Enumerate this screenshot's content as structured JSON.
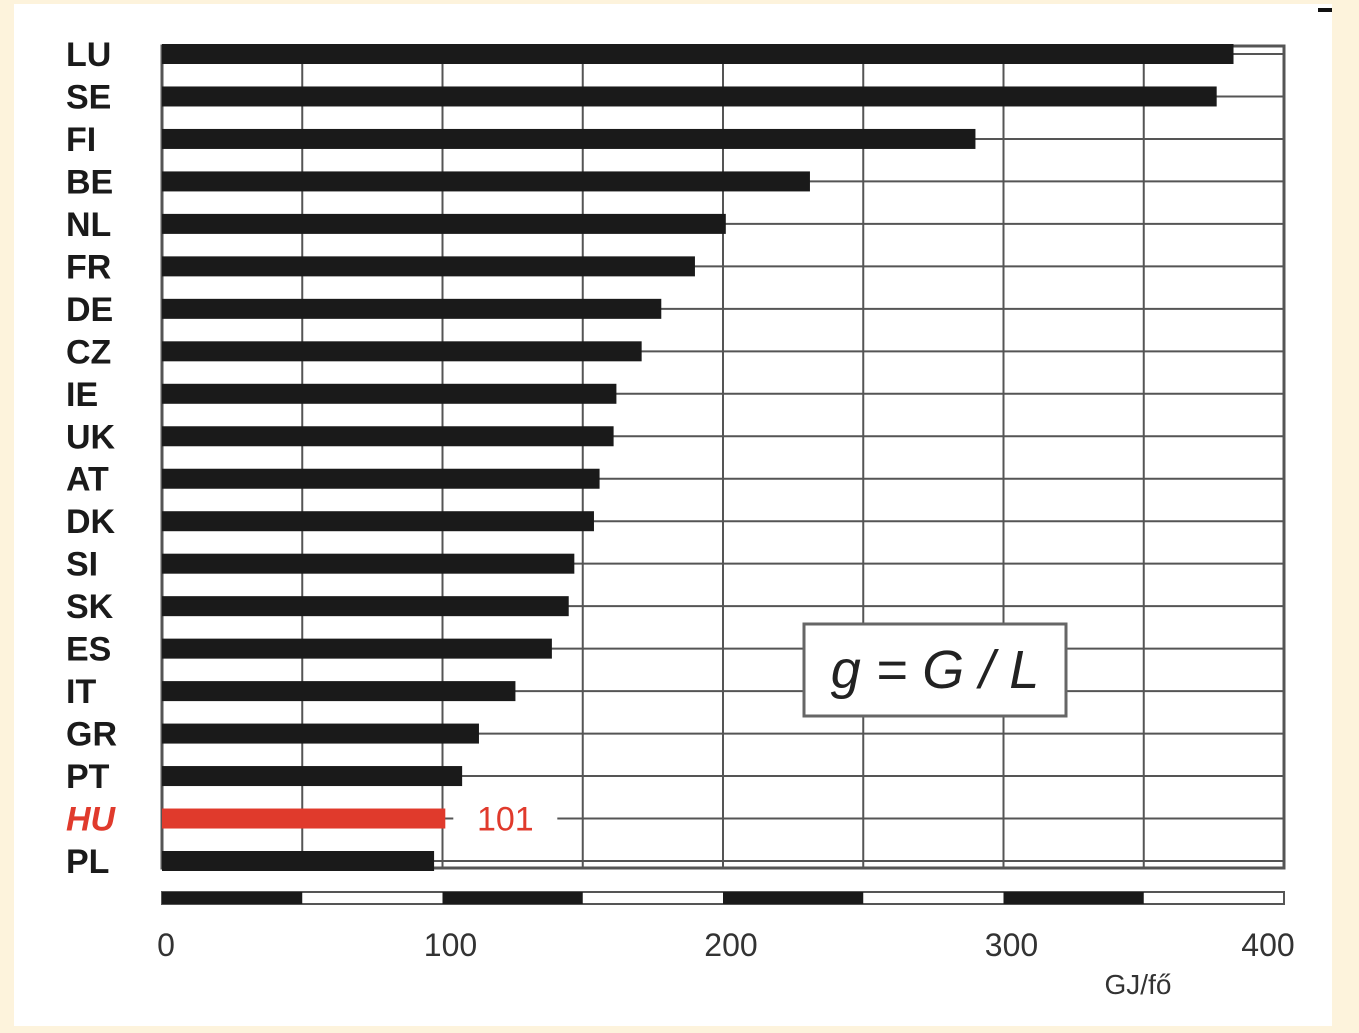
{
  "chart_data": {
    "type": "bar",
    "orientation": "horizontal",
    "categories": [
      "LU",
      "SE",
      "FI",
      "BE",
      "NL",
      "FR",
      "DE",
      "CZ",
      "IE",
      "UK",
      "AT",
      "DK",
      "SI",
      "SK",
      "ES",
      "IT",
      "GR",
      "PT",
      "HU",
      "PL"
    ],
    "values": [
      382,
      376,
      290,
      231,
      201,
      190,
      178,
      171,
      162,
      161,
      156,
      154,
      147,
      145,
      139,
      126,
      113,
      107,
      101,
      97
    ],
    "highlight": {
      "category": "HU",
      "value_label": "101",
      "color": "#e03a2c"
    },
    "bar_color": "#1a1a1a",
    "xlim": [
      0,
      400
    ],
    "x_ticks": [
      "0",
      "100",
      "200",
      "300",
      "400"
    ],
    "xlabel": "GJ/fő",
    "annotation": "g = G / L",
    "grid": true
  }
}
